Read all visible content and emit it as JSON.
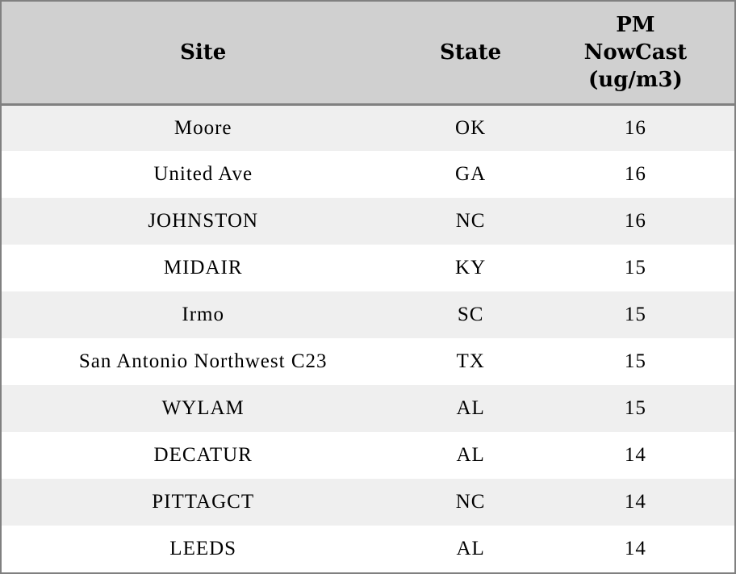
{
  "table": {
    "columns": [
      {
        "key": "site",
        "label": "Site"
      },
      {
        "key": "state",
        "label": "State"
      },
      {
        "key": "pm_nowcast",
        "label": "PM NowCast (ug/m3)"
      }
    ],
    "rows": [
      {
        "site": "Moore",
        "state": "OK",
        "pm_nowcast": "16"
      },
      {
        "site": "United Ave",
        "state": "GA",
        "pm_nowcast": "16"
      },
      {
        "site": "JOHNSTON",
        "state": "NC",
        "pm_nowcast": "16"
      },
      {
        "site": "MIDAIR",
        "state": "KY",
        "pm_nowcast": "15"
      },
      {
        "site": "Irmo",
        "state": "SC",
        "pm_nowcast": "15"
      },
      {
        "site": "San Antonio Northwest C23",
        "state": "TX",
        "pm_nowcast": "15"
      },
      {
        "site": "WYLAM",
        "state": "AL",
        "pm_nowcast": "15"
      },
      {
        "site": "DECATUR",
        "state": "AL",
        "pm_nowcast": "14"
      },
      {
        "site": "PITTAGCT",
        "state": "NC",
        "pm_nowcast": "14"
      },
      {
        "site": "LEEDS",
        "state": "AL",
        "pm_nowcast": "14"
      }
    ]
  },
  "colors": {
    "header_bg": "#d0d0d0",
    "row_alt_bg": "#efefef",
    "row_bg": "#ffffff",
    "border": "#808080",
    "text": "#000000"
  },
  "chart_data": {
    "type": "table",
    "title": "",
    "columns": [
      "Site",
      "State",
      "PM NowCast (ug/m3)"
    ],
    "rows": [
      [
        "Moore",
        "OK",
        16
      ],
      [
        "United Ave",
        "GA",
        16
      ],
      [
        "JOHNSTON",
        "NC",
        16
      ],
      [
        "MIDAIR",
        "KY",
        15
      ],
      [
        "Irmo",
        "SC",
        15
      ],
      [
        "San Antonio Northwest C23",
        "TX",
        15
      ],
      [
        "WYLAM",
        "AL",
        15
      ],
      [
        "DECATUR",
        "AL",
        14
      ],
      [
        "PITTAGCT",
        "NC",
        14
      ],
      [
        "LEEDS",
        "AL",
        14
      ]
    ],
    "layout_hints": {
      "zebra_striping": true,
      "all_cells_centered": true,
      "header_separator_rule": true
    }
  }
}
